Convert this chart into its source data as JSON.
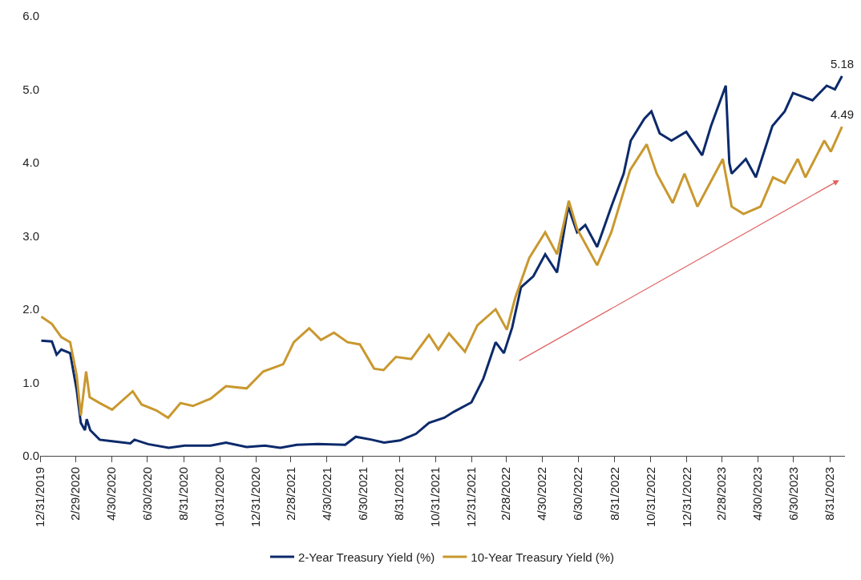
{
  "chart_data": {
    "type": "line",
    "xlim": [
      "2019-12-31",
      "2023-09-25"
    ],
    "xticks": [
      {
        "value": "2019-12-31",
        "label": "12/31/2019"
      },
      {
        "value": "2020-02-29",
        "label": "2/29/2020"
      },
      {
        "value": "2020-04-30",
        "label": "4/30/2020"
      },
      {
        "value": "2020-06-30",
        "label": "6/30/2020"
      },
      {
        "value": "2020-08-31",
        "label": "8/31/2020"
      },
      {
        "value": "2020-10-31",
        "label": "10/31/2020"
      },
      {
        "value": "2020-12-31",
        "label": "12/31/2020"
      },
      {
        "value": "2021-02-28",
        "label": "2/28/2021"
      },
      {
        "value": "2021-04-30",
        "label": "4/30/2021"
      },
      {
        "value": "2021-06-30",
        "label": "6/30/2021"
      },
      {
        "value": "2021-08-31",
        "label": "8/31/2021"
      },
      {
        "value": "2021-10-31",
        "label": "10/31/2021"
      },
      {
        "value": "2021-12-31",
        "label": "12/31/2021"
      },
      {
        "value": "2022-02-28",
        "label": "2/28/2022"
      },
      {
        "value": "2022-04-30",
        "label": "4/30/2022"
      },
      {
        "value": "2022-06-30",
        "label": "6/30/2022"
      },
      {
        "value": "2022-08-31",
        "label": "8/31/2022"
      },
      {
        "value": "2022-10-31",
        "label": "10/31/2022"
      },
      {
        "value": "2022-12-31",
        "label": "12/31/2022"
      },
      {
        "value": "2023-02-28",
        "label": "2/28/2023"
      },
      {
        "value": "2023-04-30",
        "label": "4/30/2023"
      },
      {
        "value": "2023-06-30",
        "label": "6/30/2023"
      },
      {
        "value": "2023-08-31",
        "label": "8/31/2023"
      }
    ],
    "ylim": [
      0,
      6
    ],
    "yticks": [
      {
        "value": 0,
        "label": "0.0"
      },
      {
        "value": 1,
        "label": "1.0"
      },
      {
        "value": 2,
        "label": "2.0"
      },
      {
        "value": 3,
        "label": "3.0"
      },
      {
        "value": 4,
        "label": "4.0"
      },
      {
        "value": 5,
        "label": "5.0"
      },
      {
        "value": 6,
        "label": "6.0"
      }
    ],
    "legend": "bottom",
    "marker": "none",
    "line_style": "solid",
    "series": [
      {
        "name": "2-Year Treasury Yield (%)",
        "color": "#0c2a6b",
        "x": [
          "2020-01-02",
          "2020-01-20",
          "2020-01-28",
          "2020-02-05",
          "2020-02-20",
          "2020-03-02",
          "2020-03-09",
          "2020-03-16",
          "2020-03-19",
          "2020-03-25",
          "2020-04-10",
          "2020-05-01",
          "2020-06-01",
          "2020-06-08",
          "2020-07-01",
          "2020-08-05",
          "2020-09-01",
          "2020-10-15",
          "2020-11-10",
          "2020-12-15",
          "2021-01-15",
          "2021-02-10",
          "2021-03-10",
          "2021-04-15",
          "2021-05-31",
          "2021-06-18",
          "2021-07-15",
          "2021-08-05",
          "2021-09-01",
          "2021-09-28",
          "2021-10-20",
          "2021-11-15",
          "2021-12-01",
          "2021-12-31",
          "2022-01-20",
          "2022-02-10",
          "2022-02-24",
          "2022-03-10",
          "2022-03-25",
          "2022-04-15",
          "2022-05-05",
          "2022-05-25",
          "2022-06-13",
          "2022-06-28",
          "2022-07-12",
          "2022-08-01",
          "2022-08-25",
          "2022-09-15",
          "2022-09-27",
          "2022-10-20",
          "2022-11-01",
          "2022-11-15",
          "2022-12-05",
          "2022-12-30",
          "2023-01-26",
          "2023-02-10",
          "2023-03-07",
          "2023-03-13",
          "2023-03-17",
          "2023-04-10",
          "2023-04-27",
          "2023-05-25",
          "2023-06-15",
          "2023-06-29",
          "2023-08-01",
          "2023-08-25",
          "2023-09-08",
          "2023-09-20"
        ],
        "values": [
          1.57,
          1.56,
          1.38,
          1.45,
          1.4,
          0.9,
          0.45,
          0.35,
          0.5,
          0.35,
          0.22,
          0.2,
          0.17,
          0.22,
          0.16,
          0.11,
          0.14,
          0.14,
          0.18,
          0.12,
          0.14,
          0.11,
          0.15,
          0.16,
          0.15,
          0.26,
          0.22,
          0.18,
          0.21,
          0.3,
          0.45,
          0.52,
          0.6,
          0.73,
          1.05,
          1.55,
          1.4,
          1.75,
          2.3,
          2.45,
          2.75,
          2.5,
          3.4,
          3.05,
          3.15,
          2.85,
          3.4,
          3.85,
          4.3,
          4.6,
          4.7,
          4.4,
          4.3,
          4.42,
          4.1,
          4.5,
          5.05,
          4.0,
          3.85,
          4.05,
          3.8,
          4.5,
          4.7,
          4.95,
          4.85,
          5.05,
          5.0,
          5.18
        ]
      },
      {
        "name": "10-Year Treasury Yield (%)",
        "color": "#c9982f",
        "x": [
          "2020-01-02",
          "2020-01-20",
          "2020-02-05",
          "2020-02-20",
          "2020-03-02",
          "2020-03-09",
          "2020-03-18",
          "2020-03-24",
          "2020-04-10",
          "2020-05-01",
          "2020-06-05",
          "2020-06-20",
          "2020-07-15",
          "2020-08-04",
          "2020-08-25",
          "2020-09-15",
          "2020-10-15",
          "2020-11-10",
          "2020-12-15",
          "2021-01-12",
          "2021-02-15",
          "2021-03-05",
          "2021-03-31",
          "2021-04-20",
          "2021-05-12",
          "2021-06-04",
          "2021-06-25",
          "2021-07-19",
          "2021-08-04",
          "2021-08-25",
          "2021-09-20",
          "2021-10-20",
          "2021-11-05",
          "2021-11-23",
          "2021-12-20",
          "2022-01-10",
          "2022-02-10",
          "2022-03-01",
          "2022-03-15",
          "2022-04-08",
          "2022-05-05",
          "2022-05-25",
          "2022-06-14",
          "2022-06-28",
          "2022-08-01",
          "2022-08-25",
          "2022-09-26",
          "2022-10-24",
          "2022-11-10",
          "2022-12-07",
          "2022-12-27",
          "2023-01-18",
          "2023-03-02",
          "2023-03-17",
          "2023-04-06",
          "2023-05-05",
          "2023-05-26",
          "2023-06-15",
          "2023-07-07",
          "2023-07-20",
          "2023-08-21",
          "2023-09-01",
          "2023-09-20"
        ],
        "values": [
          1.9,
          1.8,
          1.62,
          1.55,
          1.1,
          0.55,
          1.15,
          0.8,
          0.72,
          0.63,
          0.88,
          0.7,
          0.62,
          0.52,
          0.72,
          0.68,
          0.78,
          0.95,
          0.92,
          1.15,
          1.25,
          1.55,
          1.74,
          1.58,
          1.68,
          1.55,
          1.52,
          1.19,
          1.17,
          1.35,
          1.32,
          1.65,
          1.45,
          1.67,
          1.42,
          1.78,
          2.0,
          1.72,
          2.15,
          2.7,
          3.05,
          2.75,
          3.48,
          3.1,
          2.6,
          3.05,
          3.9,
          4.25,
          3.85,
          3.45,
          3.85,
          3.4,
          4.05,
          3.4,
          3.3,
          3.4,
          3.8,
          3.72,
          4.05,
          3.8,
          4.3,
          4.15,
          4.49
        ]
      }
    ],
    "annotations": [
      {
        "text": "5.18",
        "x": "2023-09-20",
        "y": 5.18
      },
      {
        "text": "4.49",
        "x": "2023-09-20",
        "y": 4.49
      }
    ]
  }
}
